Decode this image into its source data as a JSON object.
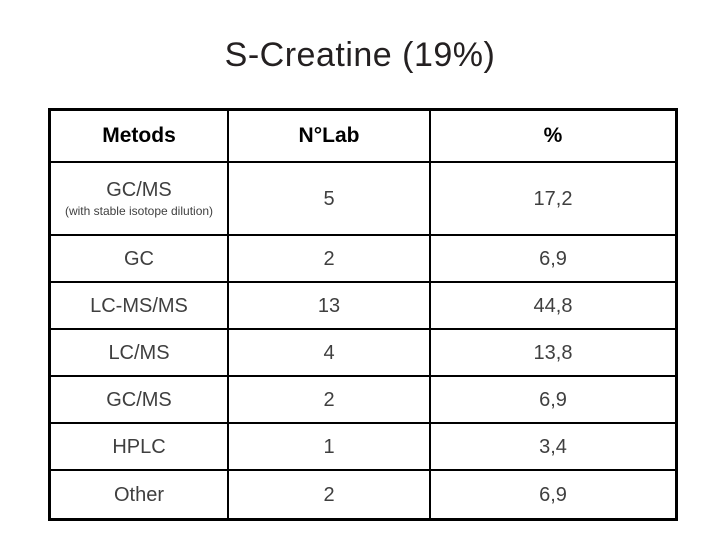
{
  "slide": {
    "title": "S-Creatine (19%)"
  },
  "table": {
    "headers": [
      "Metods",
      "N°Lab",
      "%"
    ],
    "rows": [
      {
        "method": "GC/MS",
        "note": "(with stable isotope dilution)",
        "n_lab": "5",
        "percent": "17,2"
      },
      {
        "method": "GC",
        "n_lab": "2",
        "percent": "6,9"
      },
      {
        "method": "LC-MS/MS",
        "n_lab": "13",
        "percent": "44,8"
      },
      {
        "method": "LC/MS",
        "n_lab": "4",
        "percent": "13,8"
      },
      {
        "method": "GC/MS",
        "n_lab": "2",
        "percent": "6,9"
      },
      {
        "method": "HPLC",
        "n_lab": "1",
        "percent": "3,4"
      },
      {
        "method": "Other",
        "n_lab": "2",
        "percent": "6,9"
      }
    ]
  },
  "chart_data": {
    "type": "table",
    "title": "S-Creatine (19%)",
    "columns": [
      "Metods",
      "N°Lab",
      "%"
    ],
    "rows": [
      [
        "GC/MS (with stable isotope dilution)",
        5,
        17.2
      ],
      [
        "GC",
        2,
        6.9
      ],
      [
        "LC-MS/MS",
        13,
        44.8
      ],
      [
        "LC/MS",
        4,
        13.8
      ],
      [
        "GC/MS",
        2,
        6.9
      ],
      [
        "HPLC",
        1,
        3.4
      ],
      [
        "Other",
        2,
        6.9
      ]
    ]
  },
  "colors": {
    "background": "#ffffff",
    "title_text": "#242021",
    "table_border": "#000000",
    "header_text": "#000000",
    "body_text": "#3f3f3f"
  }
}
